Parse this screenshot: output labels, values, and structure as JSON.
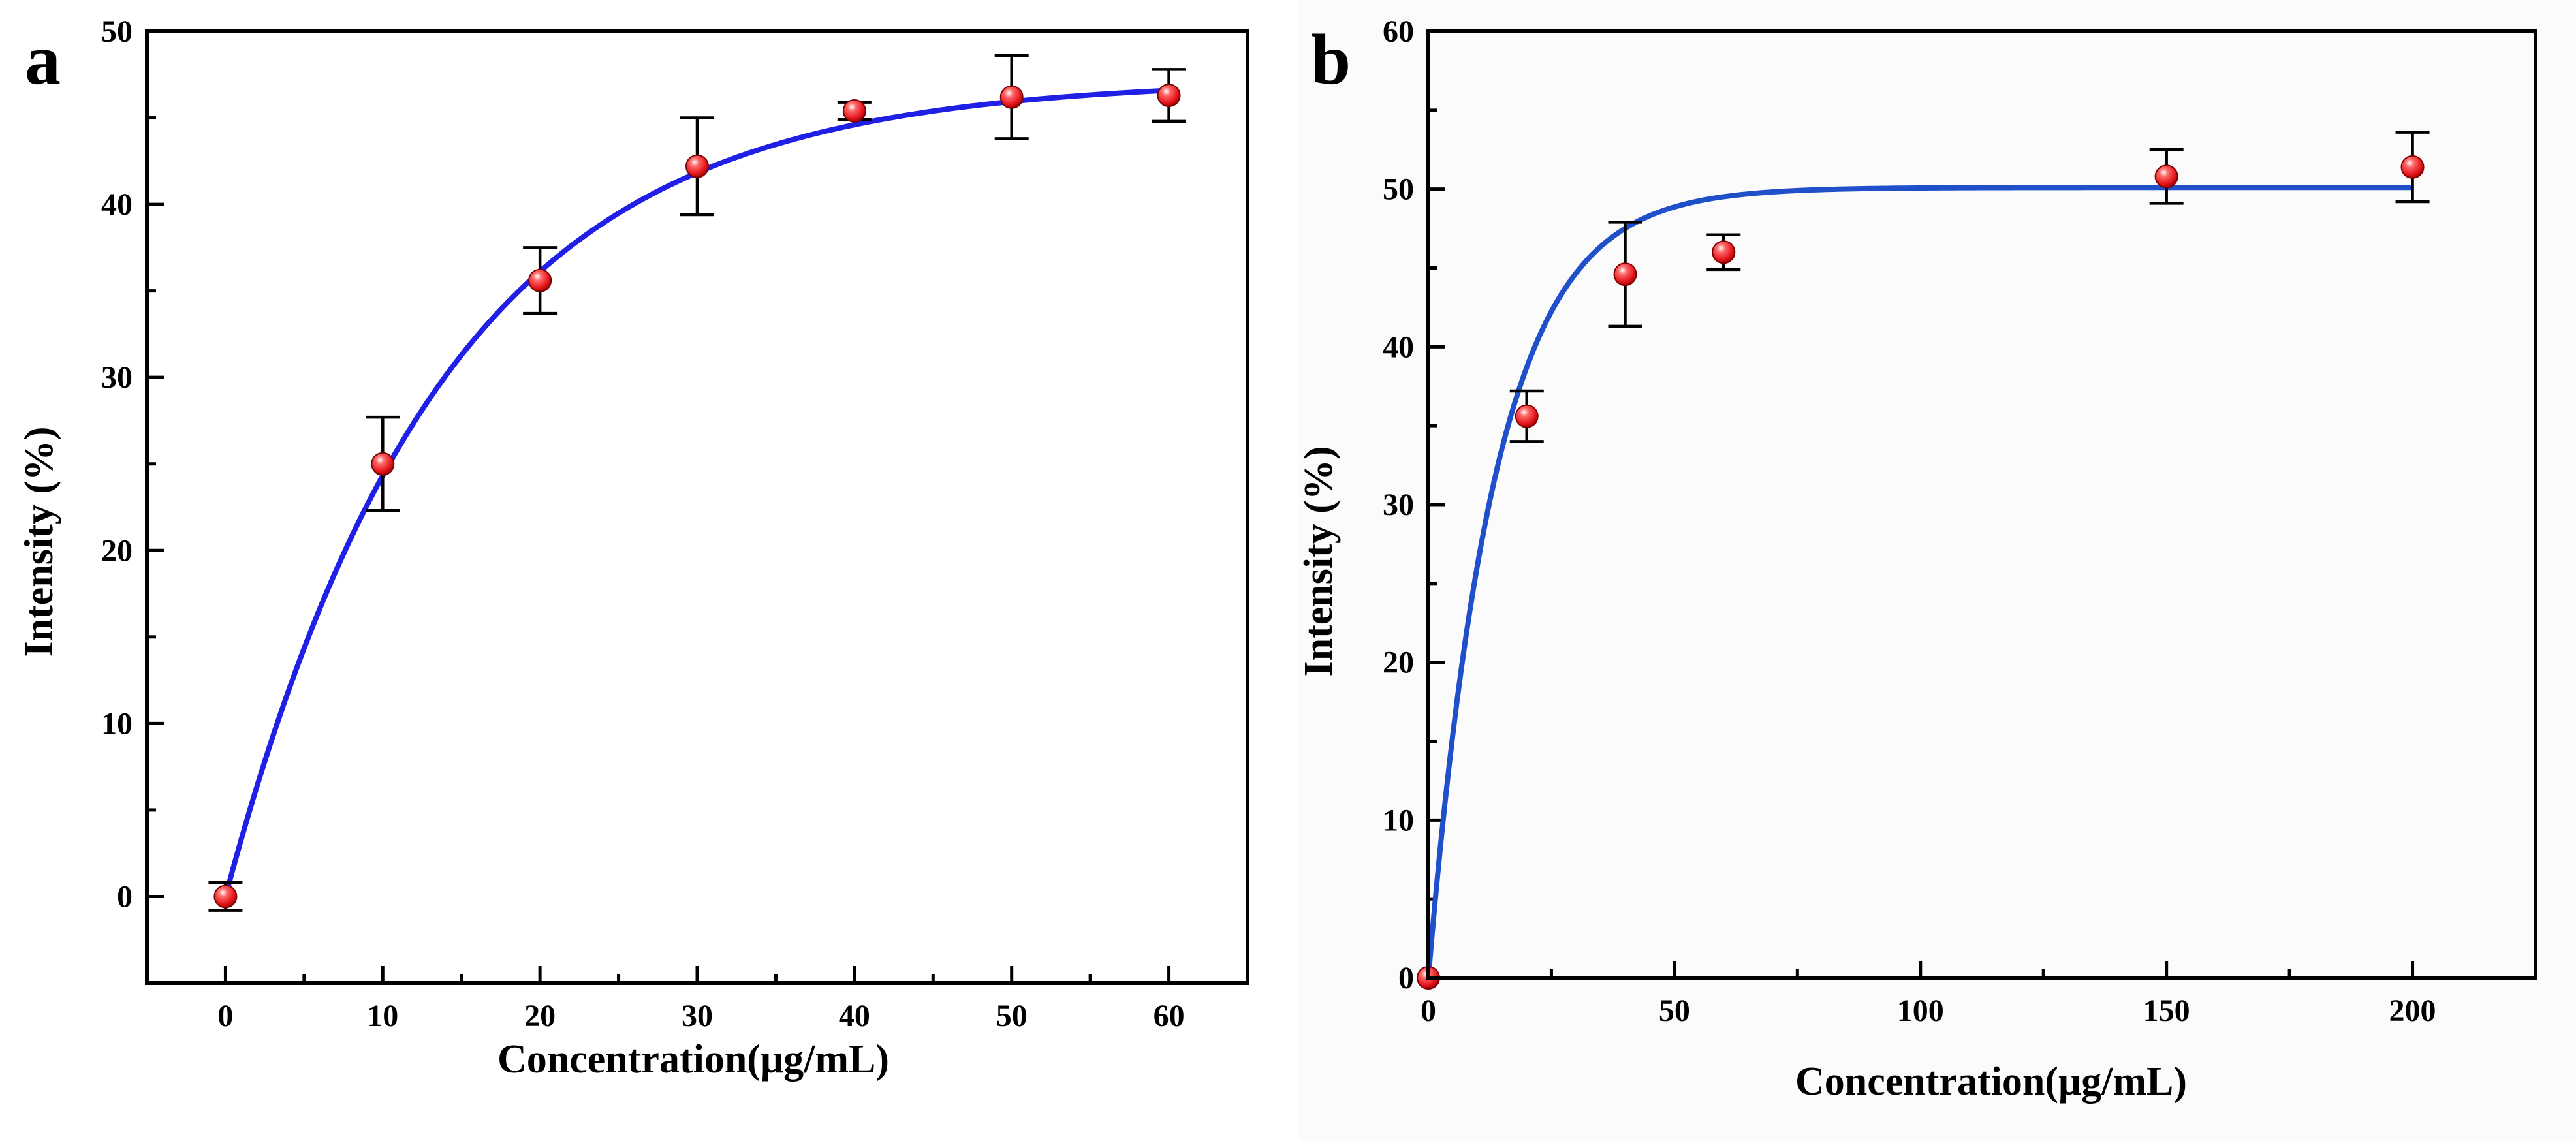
{
  "figure": {
    "marker_color": "#e3141b",
    "marker_highlight": "#ffffff",
    "axis_color": "#000000"
  },
  "chart_data": [
    {
      "panel": "a",
      "type": "scatter",
      "title": "",
      "xlabel": "Concentration(μg/mL)",
      "ylabel": "Intensity (%)",
      "xlim": [
        -5,
        65
      ],
      "ylim": [
        -5,
        50
      ],
      "xticks": [
        0,
        10,
        20,
        30,
        40,
        50,
        60
      ],
      "yticks": [
        0,
        10,
        20,
        30,
        40,
        50
      ],
      "x_minor_step": 5,
      "y_minor_step": 5,
      "x": [
        0,
        10,
        20,
        30,
        40,
        50,
        60
      ],
      "y": [
        0,
        25.0,
        35.6,
        42.2,
        45.4,
        46.2,
        46.3
      ],
      "yerr": [
        0.8,
        2.7,
        1.9,
        2.8,
        0.5,
        2.4,
        1.5
      ],
      "fit": {
        "model": "A*(1-exp(-x/t))",
        "A": 47.2,
        "t": 13.8,
        "x_range": [
          0,
          60
        ],
        "color": "#1f1fe6"
      },
      "grid": false,
      "legend": "none"
    },
    {
      "panel": "b",
      "type": "scatter",
      "title": "",
      "xlabel": "Concentration(μg/mL)",
      "ylabel": "Intensity (%)",
      "xlim": [
        0,
        225
      ],
      "ylim": [
        0,
        60
      ],
      "xticks": [
        0,
        50,
        100,
        150,
        200
      ],
      "yticks": [
        0,
        10,
        20,
        30,
        40,
        50,
        60
      ],
      "x_minor_step": 25,
      "y_minor_step": 5,
      "x": [
        0,
        20,
        40,
        60,
        150,
        200
      ],
      "y": [
        0,
        35.6,
        44.6,
        46.0,
        50.8,
        51.4
      ],
      "yerr": [
        0,
        1.6,
        3.3,
        1.1,
        1.7,
        2.2
      ],
      "fit": {
        "model": "A*(1-exp(-x/t))",
        "A": 50.1,
        "t": 13.5,
        "x_range": [
          0,
          200
        ],
        "color": "#1f4fc9"
      },
      "grid": false,
      "legend": "none"
    }
  ]
}
